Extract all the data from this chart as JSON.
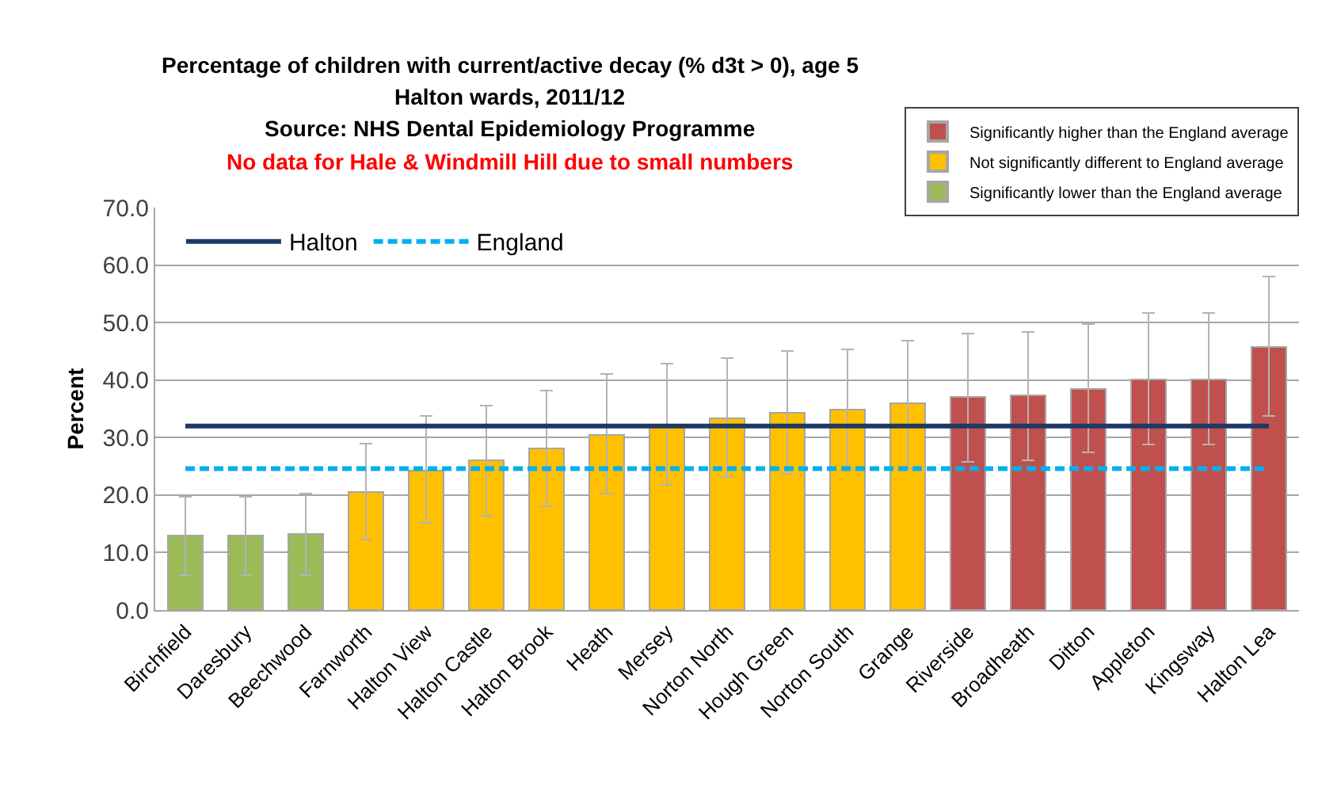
{
  "chart_data": {
    "type": "bar",
    "title": "Percentage of children with current/active decay (% d3t > 0), age 5",
    "subtitle": "Halton wards, 2011/12",
    "ylabel": "Percent",
    "annotations": [
      "Source: NHS Dental Epidemiology Programme",
      "No data for Hale & Windmill Hill due to small numbers"
    ],
    "categories": [
      "Birchfield",
      "Daresbury",
      "Beechwood",
      "Farnworth",
      "Halton View",
      "Halton Castle",
      "Halton Brook",
      "Heath",
      "Mersey",
      "Norton North",
      "Hough Green",
      "Norton South",
      "Grange",
      "Riverside",
      "Broadheath",
      "Ditton",
      "Appleton",
      "Kingsway",
      "Halton Lea"
    ],
    "stacked": true,
    "series": [
      {
        "name": "Significantly higher than the England average",
        "color": "#c0504d",
        "values": [
          null,
          null,
          null,
          null,
          null,
          null,
          null,
          null,
          null,
          null,
          null,
          null,
          null,
          37.0,
          37.3,
          38.5,
          40.1,
          40.1,
          45.8
        ],
        "errors": [
          null,
          null,
          null,
          null,
          null,
          null,
          null,
          null,
          null,
          null,
          null,
          null,
          null,
          [
            25.8,
            48.1
          ],
          [
            26.0,
            48.3
          ],
          [
            27.4,
            49.7
          ],
          [
            28.8,
            51.7
          ],
          [
            28.8,
            51.7
          ],
          [
            33.7,
            58.0
          ]
        ]
      },
      {
        "name": "Not significantly different to England average",
        "color": "#ffc000",
        "values": [
          null,
          null,
          null,
          20.6,
          24.3,
          26.0,
          28.1,
          30.5,
          31.9,
          33.4,
          34.3,
          34.8,
          35.9,
          null,
          null,
          null,
          null,
          null,
          null
        ],
        "errors": [
          null,
          null,
          null,
          [
            12.2,
            29.0
          ],
          [
            15.2,
            33.7
          ],
          [
            16.4,
            35.6
          ],
          [
            18.0,
            38.2
          ],
          [
            20.2,
            41.1
          ],
          [
            21.8,
            42.9
          ],
          [
            23.2,
            43.8
          ],
          [
            23.7,
            45.0
          ],
          [
            24.5,
            45.3
          ],
          [
            24.7,
            46.9
          ],
          null,
          null,
          null,
          null,
          null,
          null
        ]
      },
      {
        "name": "Significantly lower than the England average",
        "color": "#9bbb59",
        "values": [
          13.0,
          12.9,
          13.2,
          null,
          null,
          null,
          null,
          null,
          null,
          null,
          null,
          null,
          null,
          null,
          null,
          null,
          null,
          null,
          null
        ],
        "errors": [
          [
            6.1,
            19.7
          ],
          [
            6.1,
            19.7
          ],
          [
            6.1,
            20.2
          ],
          null,
          null,
          null,
          null,
          null,
          null,
          null,
          null,
          null,
          null,
          null,
          null,
          null,
          null,
          null,
          null
        ]
      },
      {
        "name": "Halton",
        "type": "line",
        "color": "#1f3864",
        "line_style": "solid",
        "values": [
          32.0,
          32.0,
          32.0,
          32.0,
          32.0,
          32.0,
          32.0,
          32.0,
          32.0,
          32.0,
          32.0,
          32.0,
          32.0,
          32.0,
          32.0,
          32.0,
          32.0,
          32.0,
          32.0
        ]
      },
      {
        "name": "England",
        "type": "line",
        "color": "#00b0f0",
        "line_style": "dashed",
        "values": [
          24.6,
          24.6,
          24.6,
          24.6,
          24.6,
          24.6,
          24.6,
          24.6,
          24.6,
          24.6,
          24.6,
          24.6,
          24.6,
          24.6,
          24.6,
          24.6,
          24.6,
          24.6,
          24.6
        ]
      }
    ],
    "ylim": [
      0,
      70
    ],
    "yticks": [
      {
        "value": 0,
        "label": "0.0"
      },
      {
        "value": 10,
        "label": "10.0"
      },
      {
        "value": 20,
        "label": "20.0"
      },
      {
        "value": 30,
        "label": "30.0"
      },
      {
        "value": 40,
        "label": "40.0"
      },
      {
        "value": 50,
        "label": "50.0"
      },
      {
        "value": 60,
        "label": "60.0"
      },
      {
        "value": 70,
        "label": "70.0"
      }
    ],
    "grid": "y",
    "legend": "top left",
    "marker": "none"
  }
}
